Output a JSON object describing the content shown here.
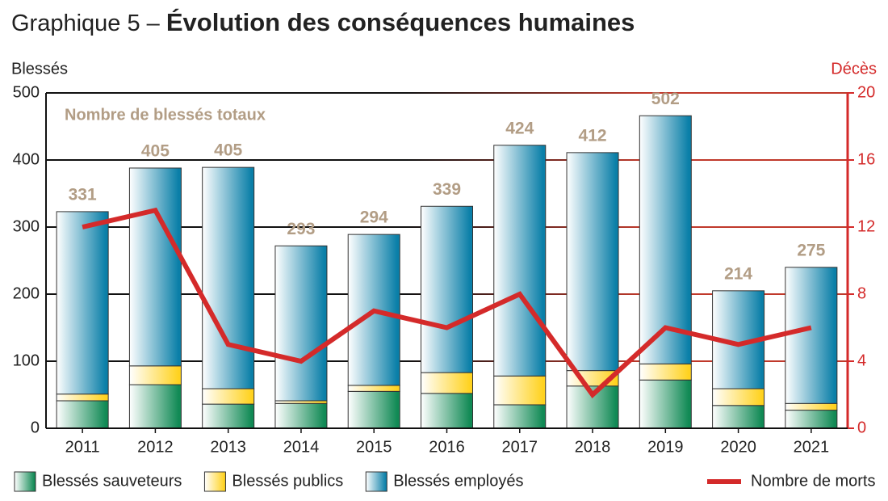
{
  "chart_data": {
    "type": "bar",
    "title_label": "Graphique 5 –",
    "title": "Évolution des conséquences humaines",
    "y_label": "Blessés",
    "y2_label": "Décès",
    "annotation": "Nombre de blessés totaux",
    "categories": [
      "2011",
      "2012",
      "2013",
      "2014",
      "2015",
      "2016",
      "2017",
      "2018",
      "2019",
      "2020",
      "2021"
    ],
    "series": [
      {
        "name": "Blessés sauveteurs",
        "color": "#118a55",
        "values": [
          41,
          65,
          36,
          37,
          55,
          52,
          35,
          63,
          72,
          34,
          27
        ]
      },
      {
        "name": "Blessés publics",
        "color": "#ffd21f",
        "values": [
          10,
          28,
          23,
          4,
          9,
          31,
          43,
          23,
          24,
          25,
          10
        ]
      },
      {
        "name": "Blessés employés",
        "color": "#0a7fa8",
        "values": [
          272,
          295,
          330,
          231,
          225,
          248,
          344,
          325,
          370,
          146,
          203
        ]
      },
      {
        "name": "Nombre de morts",
        "color": "#d42a2a",
        "axis": "y2",
        "values": [
          12,
          13,
          5,
          4,
          7,
          6,
          8,
          2,
          6,
          5,
          6
        ]
      }
    ],
    "totals": [
      331,
      405,
      405,
      293,
      294,
      339,
      424,
      412,
      502,
      214,
      275
    ],
    "totals_color": "#b29d85",
    "ylim": [
      0,
      500
    ],
    "yticks": [
      0,
      100,
      200,
      300,
      400,
      500
    ],
    "y2lim": [
      0,
      20
    ],
    "y2ticks": [
      0,
      4,
      8,
      12,
      16,
      20
    ],
    "grid": true
  }
}
